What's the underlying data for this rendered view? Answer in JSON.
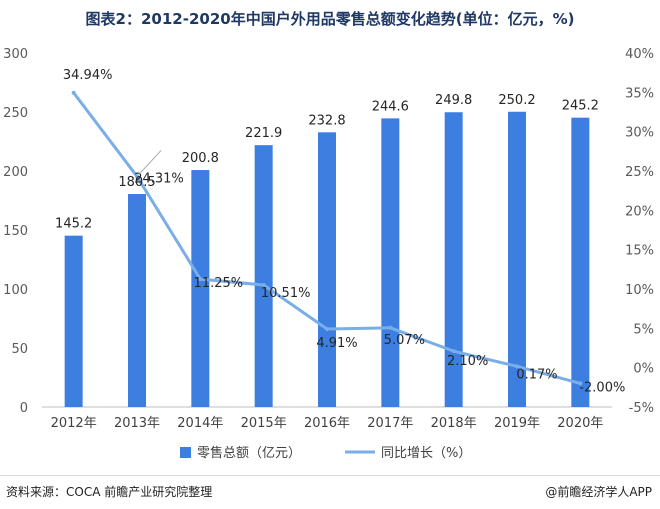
{
  "title": "图表2：2012-2020年中国户外用品零售总额变化趋势(单位：亿元，%)",
  "source": "资料来源：COCA 前瞻产业研究院整理",
  "brand": "@前瞻经济学人APP",
  "colors": {
    "bar": "#3d7fe0",
    "line": "#7aaee8",
    "axis_text": "#595959",
    "title": "#1f3864"
  },
  "chart_data": {
    "type": "bar",
    "categories": [
      "2012年",
      "2013年",
      "2014年",
      "2015年",
      "2016年",
      "2017年",
      "2018年",
      "2019年",
      "2020年"
    ],
    "series": [
      {
        "name": "零售总额（亿元）",
        "type": "bar",
        "axis": "left",
        "values": [
          145.2,
          180.5,
          200.8,
          221.9,
          232.8,
          244.6,
          249.8,
          250.2,
          245.2
        ],
        "labels": [
          "145.2",
          "180.5",
          "200.8",
          "221.9",
          "232.8",
          "244.6",
          "249.8",
          "250.2",
          "245.2"
        ]
      },
      {
        "name": "同比增长（%）",
        "type": "line",
        "axis": "right",
        "values": [
          34.94,
          24.31,
          11.25,
          10.51,
          4.91,
          5.07,
          2.1,
          0.17,
          -2.0
        ],
        "labels": [
          "34.94%",
          "24.31%",
          "11.25%",
          "10.51%",
          "4.91%",
          "5.07%",
          "2.10%",
          "0.17%",
          "-2.00%"
        ]
      }
    ],
    "ylim_left": [
      0,
      300
    ],
    "yticks_left": [
      "0",
      "50",
      "100",
      "150",
      "200",
      "250",
      "300"
    ],
    "ylim_right": [
      -5,
      40
    ],
    "yticks_right": [
      "-5%",
      "0%",
      "5%",
      "10%",
      "15%",
      "20%",
      "25%",
      "30%",
      "35%",
      "40%"
    ],
    "legend_position": "bottom-center",
    "grid": false
  }
}
